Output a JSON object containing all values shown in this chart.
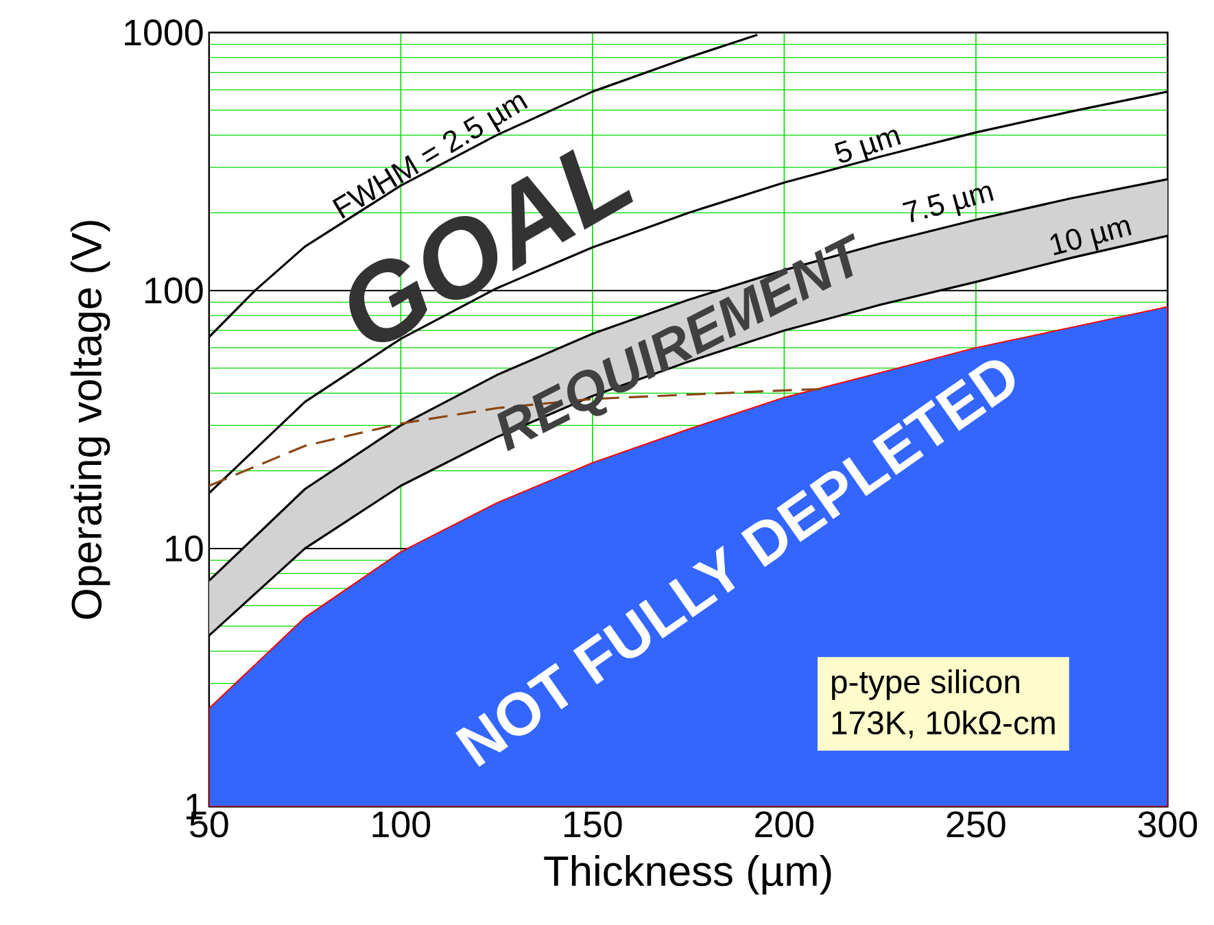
{
  "chart_data": {
    "type": "line",
    "xlabel": "Thickness (µm)",
    "ylabel": "Operating voltage (V)",
    "xlim": [
      50,
      300
    ],
    "ylim": [
      1,
      1000
    ],
    "xticks": [
      50,
      100,
      150,
      200,
      250,
      300
    ],
    "yticks": [
      1,
      10,
      100,
      1000
    ],
    "log": "y",
    "grid": true,
    "series": [
      {
        "type": "area",
        "color": "#3366ff",
        "x": [
          50,
          75,
          100,
          125,
          150,
          175,
          200,
          225,
          250,
          275,
          300
        ],
        "values": [
          2.4,
          5.4,
          9.7,
          15,
          21.5,
          29,
          38.5,
          48,
          60,
          72,
          86.5
        ]
      },
      {
        "color": "#000000",
        "x": [
          50,
          75,
          100,
          125,
          150,
          175,
          200,
          225,
          250,
          275,
          300
        ],
        "values": [
          7.5,
          17,
          30,
          47,
          68,
          92,
          120,
          152,
          188,
          228,
          270
        ],
        "lower": [
          4.6,
          10,
          17.5,
          27,
          39,
          53,
          70,
          88,
          108,
          134,
          163
        ],
        "upper": [
          7.5,
          17,
          30,
          47,
          68,
          92,
          120,
          152,
          188,
          228,
          270
        ]
      },
      {
        "color": "#000000",
        "x": [
          50,
          75,
          100,
          125,
          150,
          175,
          200,
          225,
          250,
          275,
          300
        ],
        "values": [
          4.6,
          10,
          17.5,
          27,
          39,
          53,
          70,
          88,
          108,
          134,
          163
        ]
      },
      {
        "color": "#000000",
        "x": [
          50,
          75,
          100,
          125,
          150,
          175,
          200,
          225,
          250,
          275,
          300
        ],
        "values": [
          16.4,
          37,
          65,
          102,
          147,
          200,
          262,
          330,
          410,
          495,
          590
        ]
      },
      {
        "color": "#000000",
        "x": [
          50,
          62,
          75,
          100,
          125,
          150,
          175,
          193
        ],
        "values": [
          66,
          100,
          148,
          255,
          400,
          590,
          800,
          980
        ]
      },
      {
        "color": "#8b4513",
        "line_style": "dashed",
        "x": [
          50,
          75,
          100,
          125,
          150,
          175,
          200,
          210
        ],
        "values": [
          17.5,
          25,
          30.5,
          35,
          38,
          39.5,
          41,
          41.5
        ]
      }
    ],
    "annotations": [
      "FWHM = 2.5 µm",
      "5 µm",
      "7.5 µm",
      "10 µm",
      "GOAL",
      "REQUIREMENT",
      "NOT FULLY DEPLETED",
      "p-type silicon",
      "173K, 10kΩ-cm"
    ]
  }
}
